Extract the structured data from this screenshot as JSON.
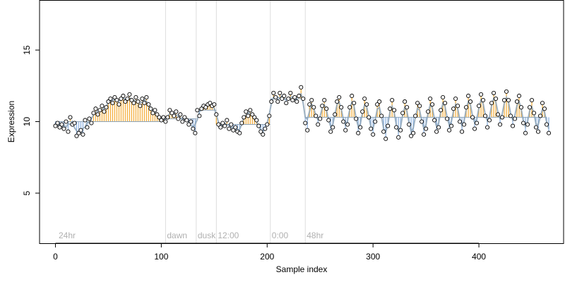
{
  "chart_data": {
    "type": "scatter",
    "title": "",
    "xlabel": "Sample index",
    "ylabel": "Expression",
    "xlim": [
      -15,
      480
    ],
    "ylim": [
      1.5,
      18.5
    ],
    "x_ticks": [
      0,
      100,
      200,
      300,
      400
    ],
    "y_ticks": [
      5,
      10,
      15
    ],
    "grid": false,
    "legend": "none",
    "colors": {
      "above": "#f5b041",
      "below": "#8fb4e3",
      "fit_line": "#8da4b8",
      "points_fill": "#ffffff",
      "points_edge": "#000000",
      "vlines": "#dddddd",
      "annotation": "#b0b0b0"
    },
    "baseline_segments": [
      {
        "x0": 0,
        "x1": 104,
        "y": 10.0
      },
      {
        "x0": 104,
        "x1": 133,
        "y": 10.2
      },
      {
        "x0": 133,
        "x1": 152,
        "y": 10.8
      },
      {
        "x0": 152,
        "x1": 203,
        "y": 9.8
      },
      {
        "x0": 203,
        "x1": 236,
        "y": 11.6
      },
      {
        "x0": 236,
        "x1": 464,
        "y": 10.3
      }
    ],
    "vertical_markers": [
      {
        "x": 104,
        "label": "dawn"
      },
      {
        "x": 133,
        "label": "dusk"
      },
      {
        "x": 152,
        "label": "12:00"
      },
      {
        "x": 203,
        "label": "0:00"
      },
      {
        "x": 236,
        "label": "48hr"
      }
    ],
    "start_label": {
      "x": 3,
      "label": "24hr"
    },
    "points": [
      [
        0,
        9.7
      ],
      [
        2,
        9.9
      ],
      [
        4,
        9.6
      ],
      [
        6,
        9.8
      ],
      [
        8,
        9.5
      ],
      [
        10,
        10.0
      ],
      [
        12,
        9.3
      ],
      [
        14,
        10.3
      ],
      [
        16,
        9.8
      ],
      [
        18,
        9.9
      ],
      [
        20,
        9.0
      ],
      [
        22,
        9.2
      ],
      [
        24,
        9.4
      ],
      [
        26,
        9.1
      ],
      [
        28,
        10.1
      ],
      [
        30,
        9.6
      ],
      [
        32,
        10.2
      ],
      [
        34,
        9.9
      ],
      [
        36,
        10.6
      ],
      [
        38,
        10.9
      ],
      [
        40,
        10.5
      ],
      [
        42,
        10.8
      ],
      [
        44,
        11.1
      ],
      [
        46,
        10.7
      ],
      [
        48,
        11.0
      ],
      [
        50,
        11.4
      ],
      [
        52,
        11.6
      ],
      [
        54,
        11.3
      ],
      [
        56,
        11.7
      ],
      [
        58,
        11.5
      ],
      [
        60,
        11.2
      ],
      [
        62,
        11.6
      ],
      [
        64,
        11.8
      ],
      [
        66,
        11.4
      ],
      [
        68,
        11.6
      ],
      [
        70,
        11.9
      ],
      [
        72,
        11.5
      ],
      [
        74,
        11.3
      ],
      [
        76,
        11.7
      ],
      [
        78,
        11.4
      ],
      [
        80,
        11.1
      ],
      [
        82,
        11.6
      ],
      [
        84,
        11.3
      ],
      [
        86,
        11.7
      ],
      [
        88,
        11.2
      ],
      [
        90,
        10.9
      ],
      [
        92,
        10.6
      ],
      [
        94,
        10.8
      ],
      [
        96,
        10.5
      ],
      [
        98,
        10.3
      ],
      [
        100,
        10.1
      ],
      [
        102,
        10.3
      ],
      [
        104,
        10.0
      ],
      [
        106,
        10.3
      ],
      [
        108,
        10.8
      ],
      [
        110,
        10.6
      ],
      [
        112,
        10.4
      ],
      [
        114,
        10.7
      ],
      [
        116,
        10.2
      ],
      [
        118,
        10.5
      ],
      [
        120,
        10.0
      ],
      [
        122,
        10.3
      ],
      [
        124,
        10.1
      ],
      [
        126,
        9.8
      ],
      [
        128,
        10.0
      ],
      [
        130,
        9.5
      ],
      [
        132,
        9.2
      ],
      [
        134,
        10.8
      ],
      [
        136,
        10.4
      ],
      [
        138,
        10.9
      ],
      [
        140,
        11.1
      ],
      [
        142,
        11.0
      ],
      [
        144,
        11.2
      ],
      [
        146,
        11.3
      ],
      [
        148,
        11.1
      ],
      [
        150,
        11.2
      ],
      [
        152,
        10.5
      ],
      [
        154,
        9.8
      ],
      [
        156,
        9.6
      ],
      [
        158,
        9.9
      ],
      [
        160,
        9.7
      ],
      [
        162,
        10.1
      ],
      [
        164,
        9.5
      ],
      [
        166,
        9.8
      ],
      [
        168,
        9.4
      ],
      [
        170,
        9.6
      ],
      [
        172,
        9.3
      ],
      [
        174,
        9.2
      ],
      [
        176,
        9.9
      ],
      [
        178,
        10.3
      ],
      [
        180,
        10.7
      ],
      [
        182,
        10.4
      ],
      [
        184,
        10.8
      ],
      [
        186,
        10.5
      ],
      [
        188,
        10.3
      ],
      [
        190,
        10.1
      ],
      [
        192,
        9.7
      ],
      [
        194,
        9.3
      ],
      [
        196,
        9.1
      ],
      [
        198,
        9.5
      ],
      [
        200,
        9.8
      ],
      [
        202,
        10.4
      ],
      [
        204,
        11.4
      ],
      [
        206,
        12.0
      ],
      [
        208,
        11.7
      ],
      [
        210,
        11.4
      ],
      [
        212,
        12.0
      ],
      [
        214,
        11.6
      ],
      [
        216,
        11.8
      ],
      [
        218,
        11.3
      ],
      [
        220,
        11.6
      ],
      [
        222,
        12.0
      ],
      [
        224,
        11.5
      ],
      [
        226,
        11.7
      ],
      [
        228,
        11.4
      ],
      [
        230,
        11.8
      ],
      [
        232,
        12.4
      ],
      [
        234,
        11.6
      ],
      [
        236,
        9.9
      ],
      [
        238,
        9.4
      ],
      [
        240,
        11.2
      ],
      [
        242,
        11.5
      ],
      [
        244,
        11.0
      ],
      [
        246,
        10.4
      ],
      [
        248,
        9.8
      ],
      [
        250,
        10.2
      ],
      [
        252,
        11.1
      ],
      [
        254,
        11.5
      ],
      [
        256,
        10.9
      ],
      [
        258,
        10.1
      ],
      [
        260,
        9.3
      ],
      [
        262,
        9.6
      ],
      [
        264,
        10.5
      ],
      [
        266,
        11.4
      ],
      [
        268,
        11.7
      ],
      [
        270,
        11.0
      ],
      [
        272,
        10.0
      ],
      [
        274,
        9.4
      ],
      [
        276,
        9.8
      ],
      [
        278,
        11.0
      ],
      [
        280,
        11.8
      ],
      [
        282,
        11.3
      ],
      [
        284,
        10.2
      ],
      [
        286,
        9.2
      ],
      [
        288,
        9.6
      ],
      [
        290,
        10.7
      ],
      [
        292,
        11.6
      ],
      [
        294,
        11.2
      ],
      [
        296,
        10.3
      ],
      [
        298,
        9.5
      ],
      [
        300,
        9.1
      ],
      [
        302,
        10.0
      ],
      [
        304,
        11.2
      ],
      [
        306,
        11.4
      ],
      [
        308,
        10.4
      ],
      [
        310,
        9.3
      ],
      [
        312,
        8.8
      ],
      [
        314,
        9.7
      ],
      [
        316,
        10.9
      ],
      [
        318,
        11.5
      ],
      [
        320,
        10.8
      ],
      [
        322,
        9.6
      ],
      [
        324,
        8.9
      ],
      [
        326,
        9.4
      ],
      [
        328,
        10.6
      ],
      [
        330,
        11.4
      ],
      [
        332,
        11.0
      ],
      [
        334,
        9.8
      ],
      [
        336,
        9.0
      ],
      [
        338,
        9.2
      ],
      [
        340,
        10.4
      ],
      [
        342,
        11.3
      ],
      [
        344,
        11.1
      ],
      [
        346,
        10.0
      ],
      [
        348,
        9.1
      ],
      [
        350,
        9.5
      ],
      [
        352,
        10.7
      ],
      [
        354,
        11.6
      ],
      [
        356,
        11.2
      ],
      [
        358,
        10.1
      ],
      [
        360,
        9.3
      ],
      [
        362,
        9.6
      ],
      [
        364,
        10.8
      ],
      [
        366,
        11.7
      ],
      [
        368,
        11.3
      ],
      [
        370,
        10.2
      ],
      [
        372,
        9.4
      ],
      [
        374,
        9.7
      ],
      [
        376,
        10.9
      ],
      [
        378,
        11.6
      ],
      [
        380,
        11.1
      ],
      [
        382,
        10.0
      ],
      [
        384,
        9.3
      ],
      [
        386,
        9.8
      ],
      [
        388,
        11.0
      ],
      [
        390,
        11.8
      ],
      [
        392,
        11.4
      ],
      [
        394,
        10.3
      ],
      [
        396,
        9.5
      ],
      [
        398,
        9.9
      ],
      [
        400,
        11.1
      ],
      [
        402,
        11.9
      ],
      [
        404,
        11.5
      ],
      [
        406,
        10.4
      ],
      [
        408,
        9.6
      ],
      [
        410,
        10.1
      ],
      [
        412,
        11.3
      ],
      [
        414,
        12.0
      ],
      [
        416,
        11.6
      ],
      [
        418,
        10.5
      ],
      [
        420,
        9.8
      ],
      [
        422,
        10.3
      ],
      [
        424,
        11.5
      ],
      [
        426,
        12.1
      ],
      [
        428,
        11.5
      ],
      [
        430,
        10.4
      ],
      [
        432,
        9.7
      ],
      [
        434,
        10.2
      ],
      [
        436,
        11.4
      ],
      [
        438,
        11.8
      ],
      [
        440,
        11.0
      ],
      [
        442,
        9.9
      ],
      [
        444,
        9.2
      ],
      [
        446,
        9.8
      ],
      [
        448,
        11.0
      ],
      [
        450,
        11.5
      ],
      [
        452,
        10.6
      ],
      [
        454,
        9.6
      ],
      [
        456,
        9.3
      ],
      [
        458,
        10.4
      ],
      [
        460,
        11.3
      ],
      [
        462,
        10.9
      ],
      [
        464,
        9.8
      ],
      [
        466,
        9.2
      ]
    ]
  }
}
